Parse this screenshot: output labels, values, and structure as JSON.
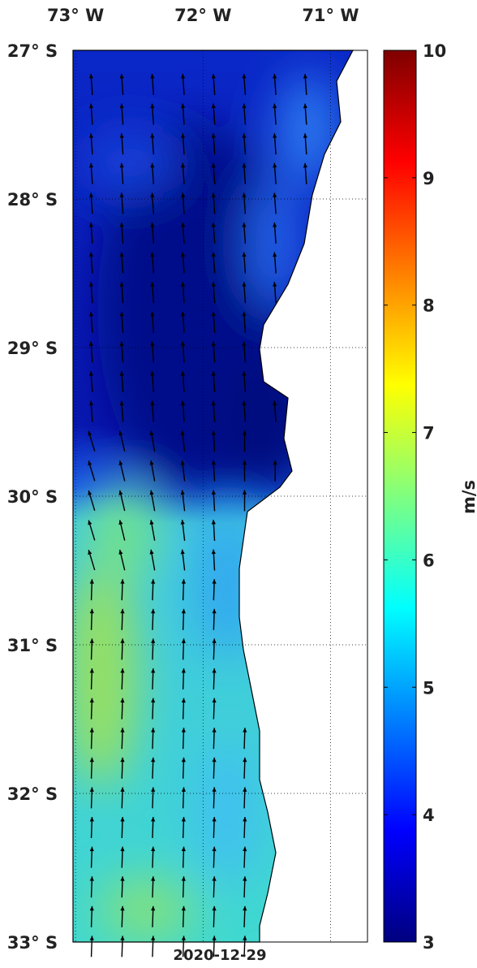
{
  "map": {
    "date": "2020-12-29",
    "xlim": [
      -73.02,
      -70.71
    ],
    "ylim": [
      -27,
      -33
    ],
    "xticks": [
      {
        "value": -73,
        "label": "73° W"
      },
      {
        "value": -72,
        "label": "72° W"
      },
      {
        "value": -71,
        "label": "71° W"
      }
    ],
    "yticks": [
      {
        "value": -27,
        "label": "27° S"
      },
      {
        "value": -28,
        "label": "28° S"
      },
      {
        "value": -29,
        "label": "29° S"
      },
      {
        "value": -30,
        "label": "30° S"
      },
      {
        "value": -31,
        "label": "31° S"
      },
      {
        "value": -32,
        "label": "32° S"
      },
      {
        "value": -33,
        "label": "33° S"
      }
    ],
    "colorbar": {
      "label": "m/s",
      "lim": [
        3,
        10
      ],
      "ticks": [
        3,
        4,
        5,
        6,
        7,
        8,
        9,
        10
      ]
    }
  }
}
